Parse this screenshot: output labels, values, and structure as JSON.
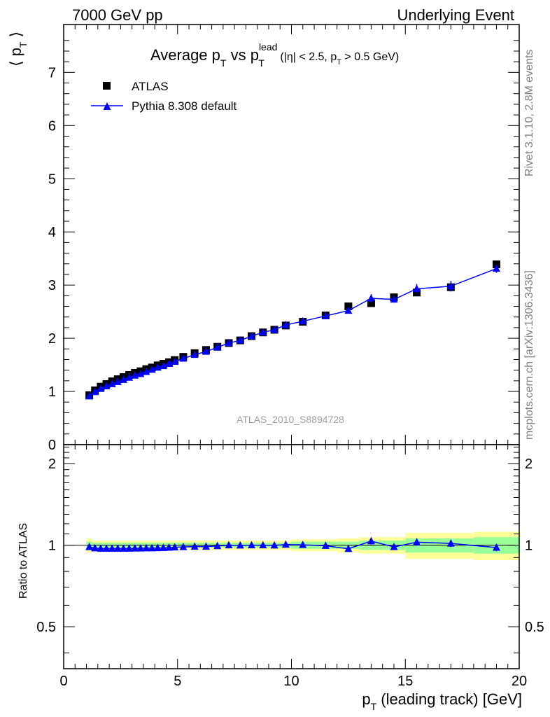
{
  "header": {
    "left": "7000 GeV pp",
    "right": "Underlying Event"
  },
  "side_labels": {
    "rivet": "Rivet 3.1.10,  2.8M events",
    "mcplots": "mcplots.cern.ch [arXiv:1306.3436]"
  },
  "analysis_id": "ATLAS_2010_S8894728",
  "colors": {
    "atlas": "#000000",
    "pythia": "#0000ff",
    "band_outer": "#ffff99",
    "band_inner": "#99ff99",
    "side_text": "#808080"
  },
  "chart_data": [
    {
      "type": "scatter",
      "panel": "main",
      "title": {
        "prefix": "Average p",
        "sub1": "T",
        "mid": " vs p",
        "sup2": "lead",
        "sub2": "T",
        "cond_pre": " (|η| < 2.5, p",
        "cond_sub": "T",
        "cond_post": " > 0.5 GeV)"
      },
      "ylabel": {
        "pre": "⟨ p",
        "sub": "T",
        "post": " ⟩"
      },
      "xlim": [
        0,
        20
      ],
      "ylim": [
        0,
        7.9
      ],
      "yticks": [
        0,
        1,
        2,
        3,
        4,
        5,
        6,
        7
      ],
      "legend_position": "top-left",
      "x": [
        1.125,
        1.375,
        1.625,
        1.875,
        2.125,
        2.375,
        2.625,
        2.875,
        3.125,
        3.375,
        3.625,
        3.875,
        4.125,
        4.375,
        4.625,
        4.875,
        5.25,
        5.75,
        6.25,
        6.75,
        7.25,
        7.75,
        8.25,
        8.75,
        9.25,
        9.75,
        10.5,
        11.5,
        12.5,
        13.5,
        14.5,
        15.5,
        17.0,
        19.0
      ],
      "series": [
        {
          "name": "ATLAS",
          "marker": "square",
          "values": [
            0.93,
            1.02,
            1.09,
            1.14,
            1.19,
            1.23,
            1.27,
            1.31,
            1.35,
            1.38,
            1.42,
            1.45,
            1.49,
            1.52,
            1.55,
            1.59,
            1.65,
            1.72,
            1.78,
            1.84,
            1.91,
            1.96,
            2.04,
            2.11,
            2.16,
            2.24,
            2.31,
            2.43,
            2.6,
            2.66,
            2.77,
            2.86,
            2.96,
            3.39
          ]
        },
        {
          "name": "Pythia 8.308 default",
          "marker": "triangle",
          "values": [
            0.91,
            0.99,
            1.05,
            1.1,
            1.14,
            1.18,
            1.22,
            1.26,
            1.3,
            1.33,
            1.37,
            1.41,
            1.45,
            1.48,
            1.52,
            1.56,
            1.62,
            1.69,
            1.75,
            1.83,
            1.91,
            1.96,
            2.04,
            2.11,
            2.16,
            2.25,
            2.32,
            2.42,
            2.52,
            2.75,
            2.73,
            2.93,
            2.98,
            3.31
          ],
          "errors": [
            0.005,
            0.005,
            0.005,
            0.005,
            0.005,
            0.005,
            0.005,
            0.005,
            0.005,
            0.005,
            0.005,
            0.005,
            0.005,
            0.005,
            0.005,
            0.005,
            0.01,
            0.01,
            0.01,
            0.01,
            0.01,
            0.01,
            0.01,
            0.01,
            0.01,
            0.01,
            0.02,
            0.02,
            0.03,
            0.08,
            0.06,
            0.09,
            0.1,
            0.08
          ]
        }
      ]
    },
    {
      "type": "line",
      "panel": "ratio",
      "ylabel": "Ratio to ATLAS",
      "xlabel": {
        "pre": "p",
        "sub": "T",
        "post": " (leading track) [GeV]"
      },
      "xlim": [
        0,
        20
      ],
      "ylim": [
        0.35,
        2.35
      ],
      "yscale": "log",
      "yticks": [
        0.5,
        1,
        2
      ],
      "xticks": [
        0,
        5,
        10,
        15,
        20
      ],
      "bin_edges": [
        1.0,
        1.25,
        1.5,
        1.75,
        2.0,
        2.25,
        2.5,
        2.75,
        3.0,
        3.25,
        3.5,
        3.75,
        4.0,
        4.25,
        4.5,
        4.75,
        5.0,
        5.5,
        6.0,
        6.5,
        7.0,
        7.5,
        8.0,
        8.5,
        9.0,
        9.5,
        10.0,
        11.0,
        12.0,
        13.0,
        14.0,
        15.0,
        16.0,
        18.0,
        20.0
      ],
      "band_outer": [
        0.06,
        0.04,
        0.04,
        0.04,
        0.04,
        0.04,
        0.04,
        0.04,
        0.04,
        0.04,
        0.04,
        0.04,
        0.04,
        0.04,
        0.04,
        0.04,
        0.04,
        0.04,
        0.04,
        0.04,
        0.04,
        0.04,
        0.04,
        0.04,
        0.04,
        0.04,
        0.05,
        0.05,
        0.06,
        0.07,
        0.07,
        0.11,
        0.11,
        0.12
      ],
      "band_inner": [
        0.03,
        0.02,
        0.02,
        0.02,
        0.02,
        0.02,
        0.02,
        0.02,
        0.02,
        0.02,
        0.02,
        0.02,
        0.02,
        0.02,
        0.02,
        0.02,
        0.02,
        0.02,
        0.02,
        0.02,
        0.02,
        0.02,
        0.02,
        0.02,
        0.02,
        0.02,
        0.03,
        0.03,
        0.03,
        0.04,
        0.04,
        0.06,
        0.06,
        0.07
      ],
      "x": [
        1.125,
        1.375,
        1.625,
        1.875,
        2.125,
        2.375,
        2.625,
        2.875,
        3.125,
        3.375,
        3.625,
        3.875,
        4.125,
        4.375,
        4.625,
        4.875,
        5.25,
        5.75,
        6.25,
        6.75,
        7.25,
        7.75,
        8.25,
        8.75,
        9.25,
        9.75,
        10.5,
        11.5,
        12.5,
        13.5,
        14.5,
        15.5,
        17.0,
        19.0
      ],
      "series": [
        {
          "name": "Pythia 8.308 default",
          "values": [
            0.985,
            0.975,
            0.972,
            0.972,
            0.972,
            0.972,
            0.972,
            0.972,
            0.973,
            0.973,
            0.975,
            0.975,
            0.976,
            0.978,
            0.98,
            0.982,
            0.985,
            0.988,
            0.988,
            0.993,
            1.0,
            0.998,
            1.0,
            1.0,
            0.998,
            1.005,
            1.003,
            0.995,
            0.97,
            1.035,
            0.985,
            1.025,
            1.015,
            0.98
          ],
          "errors": [
            0.005,
            0.004,
            0.004,
            0.004,
            0.004,
            0.004,
            0.004,
            0.004,
            0.004,
            0.004,
            0.004,
            0.004,
            0.004,
            0.004,
            0.004,
            0.004,
            0.005,
            0.005,
            0.005,
            0.006,
            0.006,
            0.006,
            0.006,
            0.006,
            0.006,
            0.006,
            0.008,
            0.009,
            0.012,
            0.03,
            0.025,
            0.03,
            0.03,
            0.03
          ]
        }
      ]
    }
  ]
}
